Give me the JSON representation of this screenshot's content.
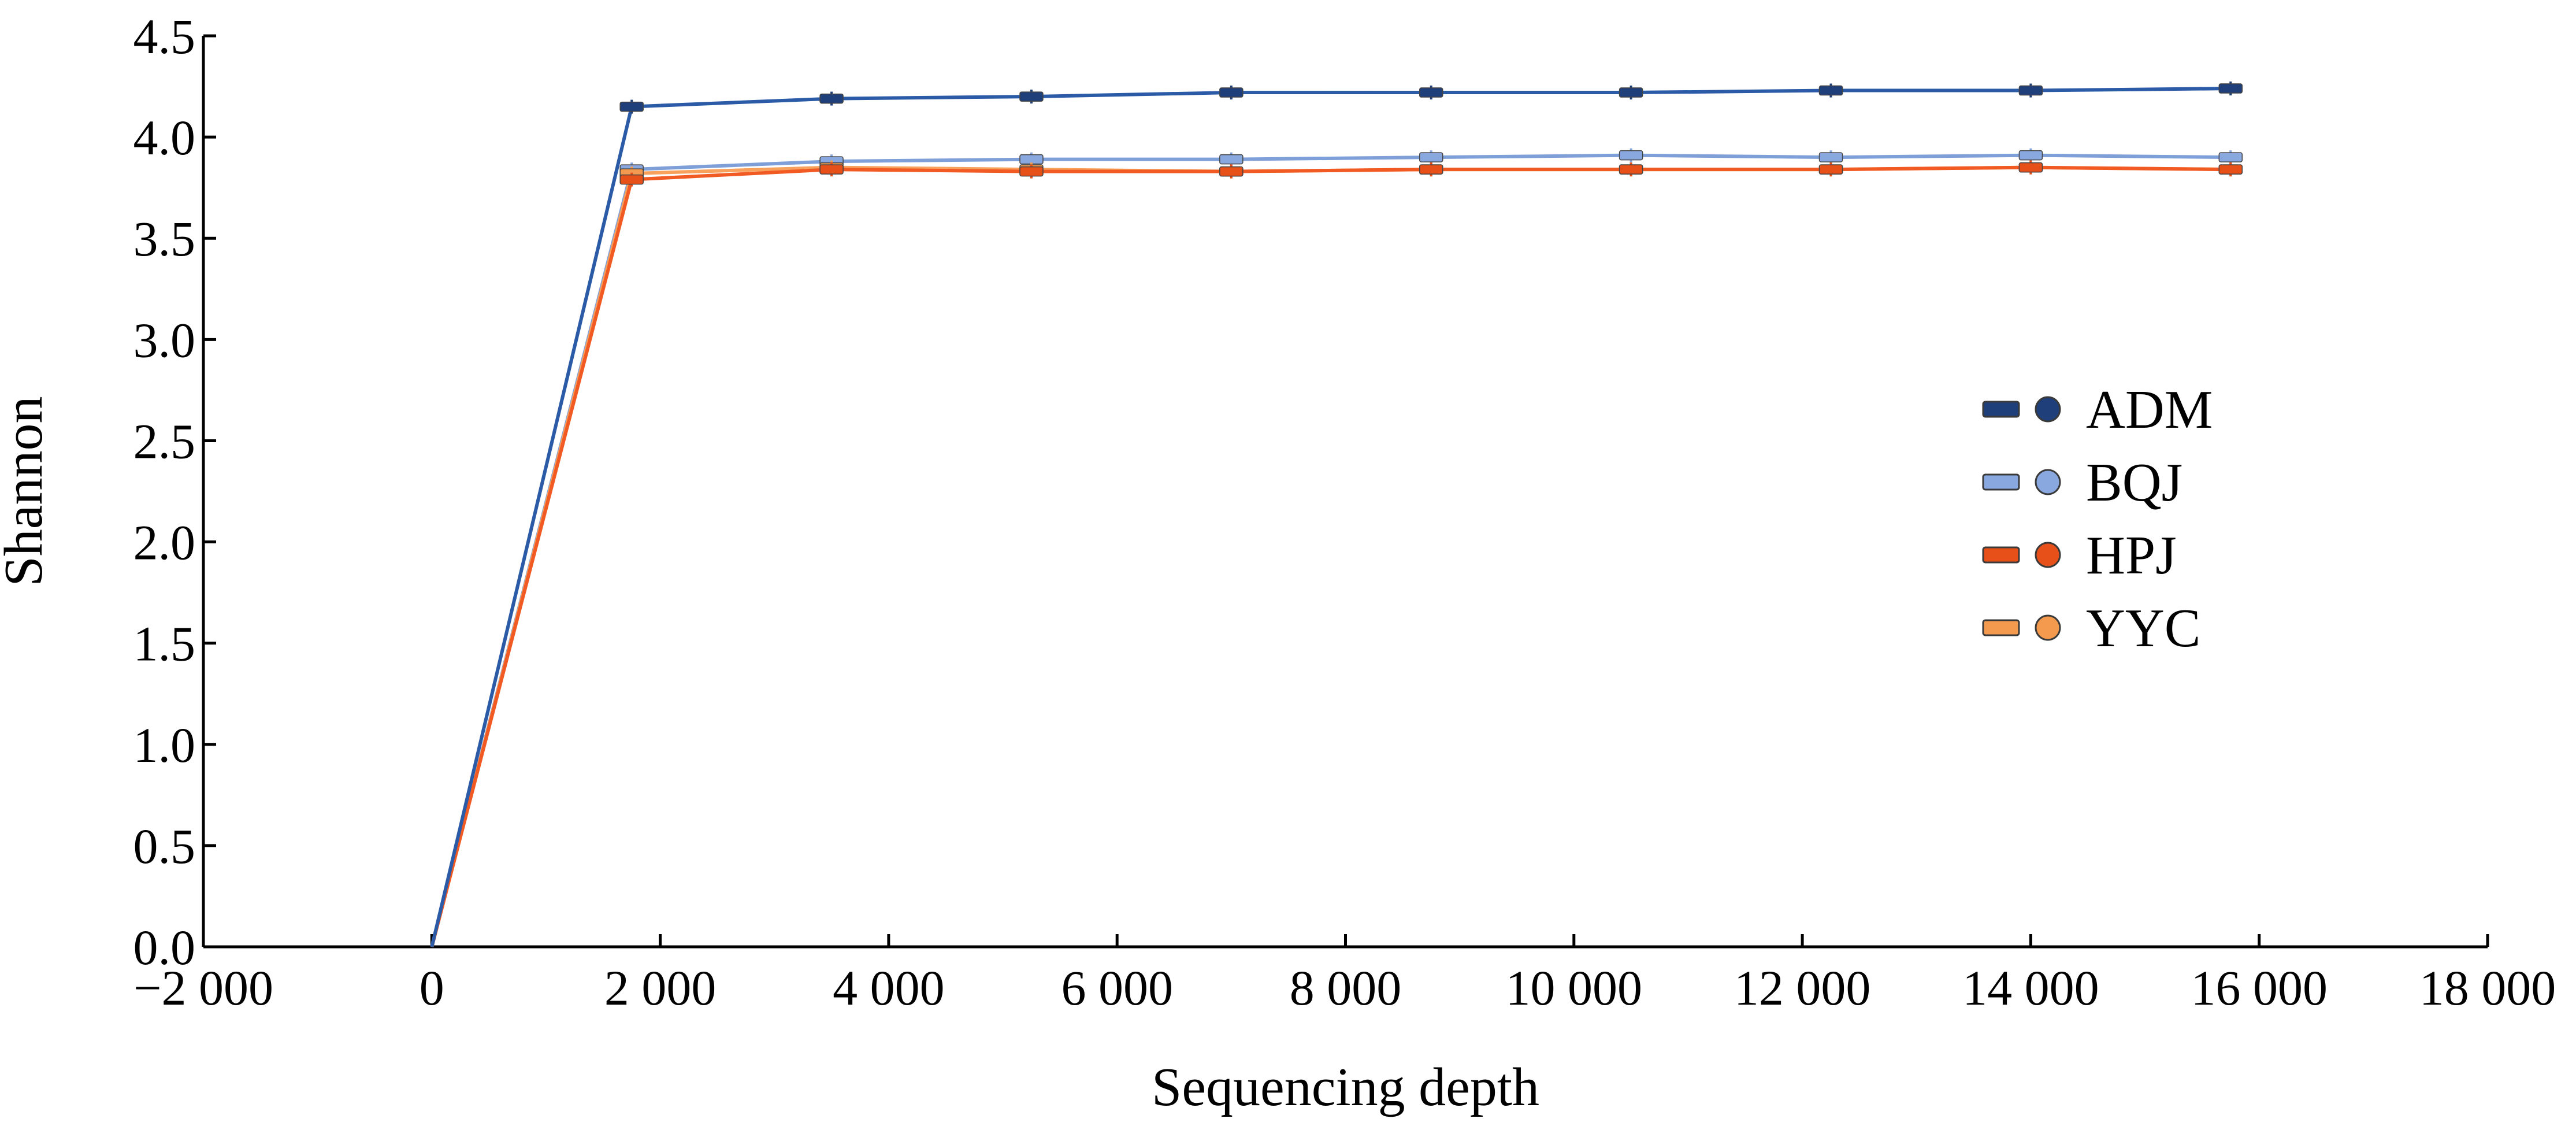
{
  "chart_data": {
    "type": "line",
    "title": "",
    "xlabel": "Sequencing depth",
    "ylabel": "Shannon",
    "xlim": [
      -2000,
      18000
    ],
    "ylim": [
      0,
      4.5
    ],
    "xticks": [
      {
        "value": -2000,
        "label": "−2 000"
      },
      {
        "value": 0,
        "label": "0"
      },
      {
        "value": 2000,
        "label": "2 000"
      },
      {
        "value": 4000,
        "label": "4 000"
      },
      {
        "value": 6000,
        "label": "6 000"
      },
      {
        "value": 8000,
        "label": "8 000"
      },
      {
        "value": 10000,
        "label": "10 000"
      },
      {
        "value": 12000,
        "label": "12 000"
      },
      {
        "value": 14000,
        "label": "14 000"
      },
      {
        "value": 16000,
        "label": "16 000"
      },
      {
        "value": 18000,
        "label": "18 000"
      }
    ],
    "yticks": [
      {
        "value": 0,
        "label": "0.0"
      },
      {
        "value": 0.5,
        "label": "0.5"
      },
      {
        "value": 1.0,
        "label": "1.0"
      },
      {
        "value": 1.5,
        "label": "1.5"
      },
      {
        "value": 2.0,
        "label": "2.0"
      },
      {
        "value": 2.5,
        "label": "2.5"
      },
      {
        "value": 3.0,
        "label": "3.0"
      },
      {
        "value": 3.5,
        "label": "3.5"
      },
      {
        "value": 4.0,
        "label": "4.0"
      },
      {
        "value": 4.5,
        "label": "4.5"
      }
    ],
    "x": [
      0,
      1750,
      3500,
      5250,
      7000,
      8750,
      10500,
      12250,
      14000,
      15750
    ],
    "series": [
      {
        "name": "ADM",
        "color": "#2b5aa6",
        "marker_color": "#1f3f7a",
        "values": [
          0,
          4.15,
          4.19,
          4.2,
          4.22,
          4.22,
          4.22,
          4.23,
          4.23,
          4.24
        ]
      },
      {
        "name": "BQJ",
        "color": "#7f9fd9",
        "marker_color": "#8aa8e0",
        "values": [
          0,
          3.84,
          3.88,
          3.89,
          3.89,
          3.9,
          3.91,
          3.9,
          3.91,
          3.9
        ]
      },
      {
        "name": "HPJ",
        "color": "#f15a22",
        "marker_color": "#e8501a",
        "values": [
          0,
          3.79,
          3.84,
          3.83,
          3.83,
          3.84,
          3.84,
          3.84,
          3.85,
          3.84
        ]
      },
      {
        "name": "YYC",
        "color": "#f7a15c",
        "marker_color": "#f39a4f",
        "values": [
          0,
          3.82,
          3.85,
          3.84,
          3.83,
          3.84,
          3.84,
          3.84,
          3.85,
          3.84
        ]
      }
    ],
    "grid": false,
    "legend_position": "right"
  }
}
